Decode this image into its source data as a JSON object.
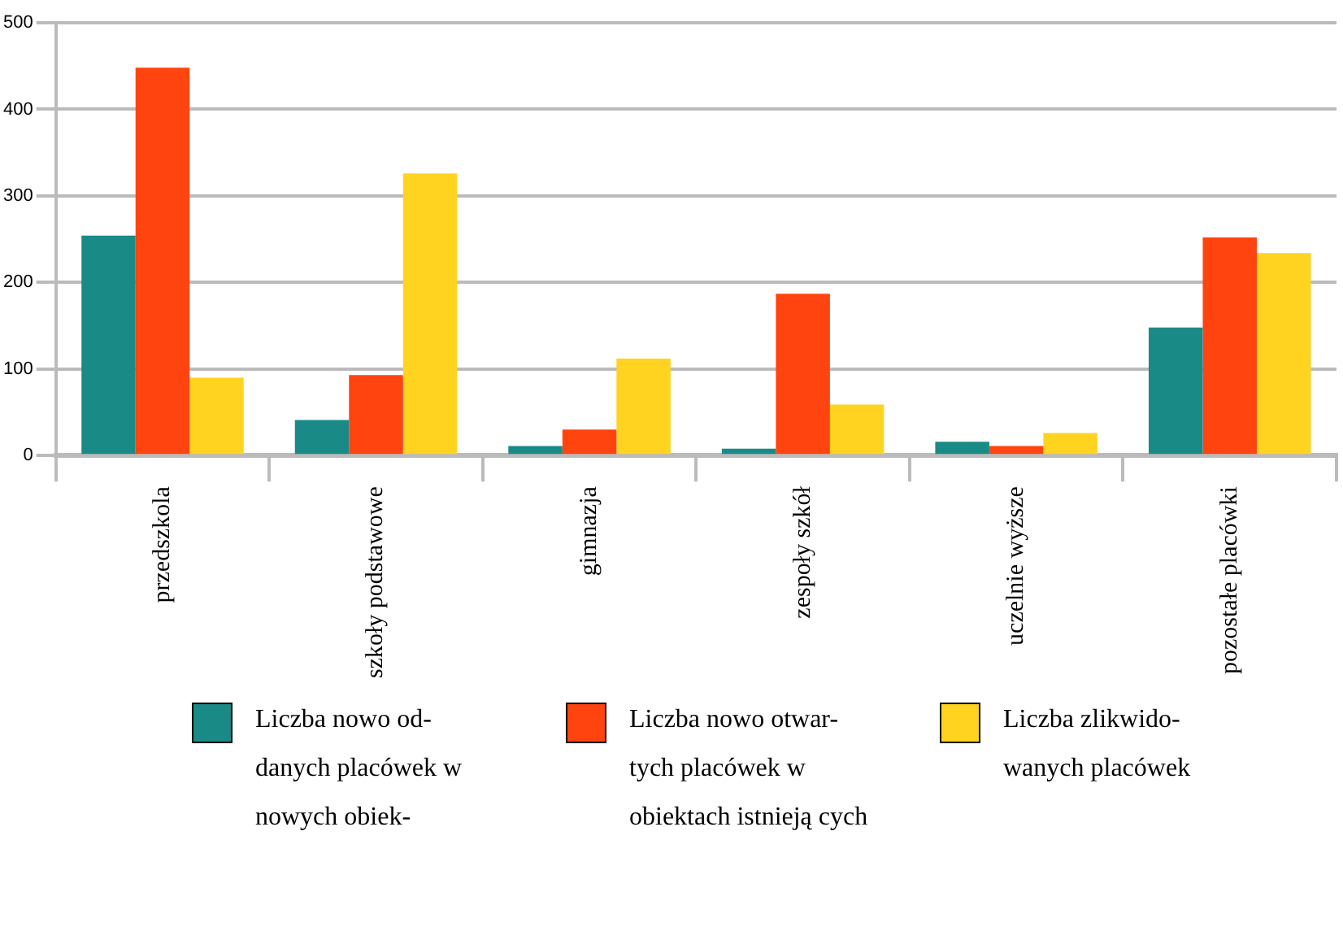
{
  "chart_data": {
    "type": "bar",
    "categories": [
      "przedszkola",
      "szkoły podstawowe",
      "gimnazja",
      "zespoły szkół",
      "uczelnie wyższe",
      "pozostałe placówki"
    ],
    "series": [
      {
        "name": "Liczba nowo od- danych  placówek w nowych obiek-",
        "color": "#1a8a87",
        "values": [
          254,
          41,
          11,
          8,
          16,
          148
        ]
      },
      {
        "name": "Liczba nowo otwar- tych placówek w obiektach istnieją cych",
        "color": "#ff4410",
        "values": [
          448,
          93,
          30,
          187,
          11,
          252
        ]
      },
      {
        "name": "Liczba zlikwido- wanych placówek",
        "color": "#ffd320",
        "values": [
          90,
          326,
          112,
          59,
          26,
          234
        ]
      }
    ],
    "ylim": [
      0,
      500
    ],
    "yticks": [
      0,
      100,
      200,
      300,
      400,
      500
    ],
    "grid": "y",
    "legend": "bottom"
  }
}
